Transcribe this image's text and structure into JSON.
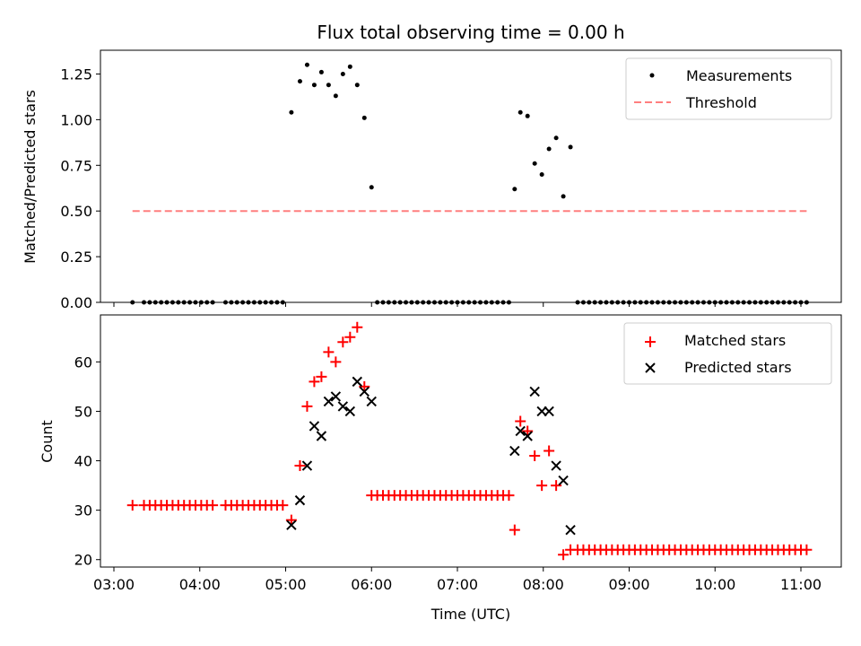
{
  "chart_data": [
    {
      "type": "scatter",
      "title": "Flux total observing time = 0.00 h",
      "xlabel": "",
      "ylabel": "Matched/Predicted stars",
      "ylim": [
        0.0,
        1.38
      ],
      "yticks": [
        0.0,
        0.25,
        0.5,
        0.75,
        1.0,
        1.25
      ],
      "ytick_labels": [
        "0.00",
        "0.25",
        "0.50",
        "0.75",
        "1.00",
        "1.25"
      ],
      "xlim": [
        "03:00",
        "11:00"
      ],
      "xticks": [
        "03:00",
        "04:00",
        "05:00",
        "06:00",
        "07:00",
        "08:00",
        "09:00",
        "10:00",
        "11:00"
      ],
      "legend_location": "top-right",
      "series": [
        {
          "name": "Measurements",
          "marker": "dot",
          "color": "#000000",
          "points": [
            [
              "03:13",
              0
            ],
            [
              "03:21",
              0
            ],
            [
              "03:25",
              0
            ],
            [
              "03:29",
              0
            ],
            [
              "03:33",
              0
            ],
            [
              "03:37",
              0
            ],
            [
              "03:41",
              0
            ],
            [
              "03:45",
              0
            ],
            [
              "03:49",
              0
            ],
            [
              "03:53",
              0
            ],
            [
              "03:57",
              0
            ],
            [
              "04:01",
              0
            ],
            [
              "04:05",
              0
            ],
            [
              "04:09",
              0
            ],
            [
              "04:18",
              0
            ],
            [
              "04:22",
              0
            ],
            [
              "04:26",
              0
            ],
            [
              "04:30",
              0
            ],
            [
              "04:34",
              0
            ],
            [
              "04:38",
              0
            ],
            [
              "04:42",
              0
            ],
            [
              "04:46",
              0
            ],
            [
              "04:50",
              0
            ],
            [
              "04:54",
              0
            ],
            [
              "04:58",
              0
            ],
            [
              "05:04",
              1.04
            ],
            [
              "05:10",
              1.21
            ],
            [
              "05:15",
              1.3
            ],
            [
              "05:20",
              1.19
            ],
            [
              "05:25",
              1.26
            ],
            [
              "05:30",
              1.19
            ],
            [
              "05:35",
              1.13
            ],
            [
              "05:40",
              1.25
            ],
            [
              "05:45",
              1.29
            ],
            [
              "05:50",
              1.19
            ],
            [
              "05:55",
              1.01
            ],
            [
              "06:00",
              0.63
            ],
            [
              "06:04",
              0
            ],
            [
              "06:08",
              0
            ],
            [
              "06:12",
              0
            ],
            [
              "06:16",
              0
            ],
            [
              "06:20",
              0
            ],
            [
              "06:24",
              0
            ],
            [
              "06:28",
              0
            ],
            [
              "06:32",
              0
            ],
            [
              "06:36",
              0
            ],
            [
              "06:40",
              0
            ],
            [
              "06:44",
              0
            ],
            [
              "06:48",
              0
            ],
            [
              "06:52",
              0
            ],
            [
              "06:56",
              0
            ],
            [
              "07:00",
              0
            ],
            [
              "07:04",
              0
            ],
            [
              "07:08",
              0
            ],
            [
              "07:12",
              0
            ],
            [
              "07:16",
              0
            ],
            [
              "07:20",
              0
            ],
            [
              "07:24",
              0
            ],
            [
              "07:28",
              0
            ],
            [
              "07:32",
              0
            ],
            [
              "07:36",
              0
            ],
            [
              "07:40",
              0.62
            ],
            [
              "07:44",
              1.04
            ],
            [
              "07:49",
              1.02
            ],
            [
              "07:54",
              0.76
            ],
            [
              "07:59",
              0.7
            ],
            [
              "08:04",
              0.84
            ],
            [
              "08:09",
              0.9
            ],
            [
              "08:14",
              0.58
            ],
            [
              "08:19",
              0.85
            ],
            [
              "08:24",
              0
            ],
            [
              "08:28",
              0
            ],
            [
              "08:32",
              0
            ],
            [
              "08:36",
              0
            ],
            [
              "08:40",
              0
            ],
            [
              "08:44",
              0
            ],
            [
              "08:48",
              0
            ],
            [
              "08:52",
              0
            ],
            [
              "08:56",
              0
            ],
            [
              "09:00",
              0
            ],
            [
              "09:04",
              0
            ],
            [
              "09:08",
              0
            ],
            [
              "09:12",
              0
            ],
            [
              "09:16",
              0
            ],
            [
              "09:20",
              0
            ],
            [
              "09:24",
              0
            ],
            [
              "09:28",
              0
            ],
            [
              "09:32",
              0
            ],
            [
              "09:36",
              0
            ],
            [
              "09:40",
              0
            ],
            [
              "09:44",
              0
            ],
            [
              "09:48",
              0
            ],
            [
              "09:52",
              0
            ],
            [
              "09:56",
              0
            ],
            [
              "10:00",
              0
            ],
            [
              "10:04",
              0
            ],
            [
              "10:08",
              0
            ],
            [
              "10:12",
              0
            ],
            [
              "10:16",
              0
            ],
            [
              "10:20",
              0
            ],
            [
              "10:24",
              0
            ],
            [
              "10:28",
              0
            ],
            [
              "10:32",
              0
            ],
            [
              "10:36",
              0
            ],
            [
              "10:40",
              0
            ],
            [
              "10:44",
              0
            ],
            [
              "10:48",
              0
            ],
            [
              "10:52",
              0
            ],
            [
              "10:56",
              0
            ],
            [
              "11:00",
              0
            ],
            [
              "11:04",
              0
            ]
          ]
        },
        {
          "name": "Threshold",
          "marker": "dashed-line",
          "color": "#ff7f7f",
          "points": [
            [
              "03:13",
              0.5
            ],
            [
              "11:04",
              0.5
            ]
          ]
        }
      ]
    },
    {
      "type": "scatter",
      "title": "",
      "xlabel": "Time (UTC)",
      "ylabel": "Count",
      "ylim": [
        18.5,
        69.5
      ],
      "yticks": [
        20,
        30,
        40,
        50,
        60
      ],
      "ytick_labels": [
        "20",
        "30",
        "40",
        "50",
        "60"
      ],
      "xlim": [
        "03:00",
        "11:00"
      ],
      "xticks": [
        "03:00",
        "04:00",
        "05:00",
        "06:00",
        "07:00",
        "08:00",
        "09:00",
        "10:00",
        "11:00"
      ],
      "xtick_labels": [
        "03:00",
        "04:00",
        "05:00",
        "06:00",
        "07:00",
        "08:00",
        "09:00",
        "10:00",
        "11:00"
      ],
      "legend_location": "top-right",
      "series": [
        {
          "name": "Matched stars",
          "marker": "plus",
          "color": "#ff0000",
          "points": [
            [
              "03:13",
              31
            ],
            [
              "03:21",
              31
            ],
            [
              "03:25",
              31
            ],
            [
              "03:29",
              31
            ],
            [
              "03:33",
              31
            ],
            [
              "03:37",
              31
            ],
            [
              "03:41",
              31
            ],
            [
              "03:45",
              31
            ],
            [
              "03:49",
              31
            ],
            [
              "03:53",
              31
            ],
            [
              "03:57",
              31
            ],
            [
              "04:01",
              31
            ],
            [
              "04:05",
              31
            ],
            [
              "04:09",
              31
            ],
            [
              "04:18",
              31
            ],
            [
              "04:22",
              31
            ],
            [
              "04:26",
              31
            ],
            [
              "04:30",
              31
            ],
            [
              "04:34",
              31
            ],
            [
              "04:38",
              31
            ],
            [
              "04:42",
              31
            ],
            [
              "04:46",
              31
            ],
            [
              "04:50",
              31
            ],
            [
              "04:54",
              31
            ],
            [
              "04:58",
              31
            ],
            [
              "05:04",
              28
            ],
            [
              "05:10",
              39
            ],
            [
              "05:15",
              51
            ],
            [
              "05:20",
              56
            ],
            [
              "05:25",
              57
            ],
            [
              "05:30",
              62
            ],
            [
              "05:35",
              60
            ],
            [
              "05:40",
              64
            ],
            [
              "05:45",
              65
            ],
            [
              "05:50",
              67
            ],
            [
              "05:55",
              55
            ],
            [
              "06:00",
              33
            ],
            [
              "06:04",
              33
            ],
            [
              "06:08",
              33
            ],
            [
              "06:12",
              33
            ],
            [
              "06:16",
              33
            ],
            [
              "06:20",
              33
            ],
            [
              "06:24",
              33
            ],
            [
              "06:28",
              33
            ],
            [
              "06:32",
              33
            ],
            [
              "06:36",
              33
            ],
            [
              "06:40",
              33
            ],
            [
              "06:44",
              33
            ],
            [
              "06:48",
              33
            ],
            [
              "06:52",
              33
            ],
            [
              "06:56",
              33
            ],
            [
              "07:00",
              33
            ],
            [
              "07:04",
              33
            ],
            [
              "07:08",
              33
            ],
            [
              "07:12",
              33
            ],
            [
              "07:16",
              33
            ],
            [
              "07:20",
              33
            ],
            [
              "07:24",
              33
            ],
            [
              "07:28",
              33
            ],
            [
              "07:32",
              33
            ],
            [
              "07:36",
              33
            ],
            [
              "07:40",
              26
            ],
            [
              "07:44",
              48
            ],
            [
              "07:49",
              46
            ],
            [
              "07:54",
              41
            ],
            [
              "07:59",
              35
            ],
            [
              "08:04",
              42
            ],
            [
              "08:09",
              35
            ],
            [
              "08:14",
              21
            ],
            [
              "08:19",
              22
            ],
            [
              "08:24",
              22
            ],
            [
              "08:28",
              22
            ],
            [
              "08:32",
              22
            ],
            [
              "08:36",
              22
            ],
            [
              "08:40",
              22
            ],
            [
              "08:44",
              22
            ],
            [
              "08:48",
              22
            ],
            [
              "08:52",
              22
            ],
            [
              "08:56",
              22
            ],
            [
              "09:00",
              22
            ],
            [
              "09:04",
              22
            ],
            [
              "09:08",
              22
            ],
            [
              "09:12",
              22
            ],
            [
              "09:16",
              22
            ],
            [
              "09:20",
              22
            ],
            [
              "09:24",
              22
            ],
            [
              "09:28",
              22
            ],
            [
              "09:32",
              22
            ],
            [
              "09:36",
              22
            ],
            [
              "09:40",
              22
            ],
            [
              "09:44",
              22
            ],
            [
              "09:48",
              22
            ],
            [
              "09:52",
              22
            ],
            [
              "09:56",
              22
            ],
            [
              "10:00",
              22
            ],
            [
              "10:04",
              22
            ],
            [
              "10:08",
              22
            ],
            [
              "10:12",
              22
            ],
            [
              "10:16",
              22
            ],
            [
              "10:20",
              22
            ],
            [
              "10:24",
              22
            ],
            [
              "10:28",
              22
            ],
            [
              "10:32",
              22
            ],
            [
              "10:36",
              22
            ],
            [
              "10:40",
              22
            ],
            [
              "10:44",
              22
            ],
            [
              "10:48",
              22
            ],
            [
              "10:52",
              22
            ],
            [
              "10:56",
              22
            ],
            [
              "11:00",
              22
            ],
            [
              "11:04",
              22
            ]
          ]
        },
        {
          "name": "Predicted stars",
          "marker": "x",
          "color": "#000000",
          "points": [
            [
              "05:04",
              27
            ],
            [
              "05:10",
              32
            ],
            [
              "05:15",
              39
            ],
            [
              "05:20",
              47
            ],
            [
              "05:25",
              45
            ],
            [
              "05:30",
              52
            ],
            [
              "05:35",
              53
            ],
            [
              "05:40",
              51
            ],
            [
              "05:45",
              50
            ],
            [
              "05:50",
              56
            ],
            [
              "05:55",
              54
            ],
            [
              "06:00",
              52
            ],
            [
              "07:40",
              42
            ],
            [
              "07:44",
              46
            ],
            [
              "07:49",
              45
            ],
            [
              "07:54",
              54
            ],
            [
              "07:59",
              50
            ],
            [
              "08:04",
              50
            ],
            [
              "08:09",
              39
            ],
            [
              "08:14",
              36
            ],
            [
              "08:19",
              26
            ]
          ]
        }
      ]
    }
  ]
}
